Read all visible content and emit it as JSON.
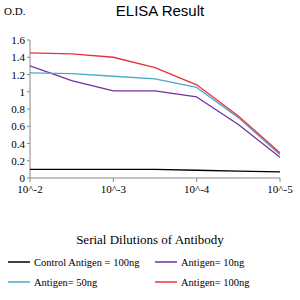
{
  "chart_data": {
    "type": "line",
    "title": "ELISA Result",
    "y_label": "O.D.",
    "x_label": "Serial Dilutions of Antibody",
    "log": "x",
    "x": [
      0.01,
      0.0031623,
      0.001,
      0.00031623,
      0.0001,
      3.1623e-05,
      1e-05
    ],
    "xlim": [
      0.01,
      1e-05
    ],
    "xticks": [
      {
        "value": 0.01,
        "label": "10^-2"
      },
      {
        "value": 0.001,
        "label": "10^-3"
      },
      {
        "value": 0.0001,
        "label": "10^-4"
      },
      {
        "value": 1e-05,
        "label": "10^-5"
      }
    ],
    "ylim": [
      0,
      1.6
    ],
    "yticks": [
      0,
      0.2,
      0.4,
      0.6,
      0.8,
      1,
      1.2,
      1.4,
      1.6
    ],
    "grid": false,
    "legend": "bottom",
    "series": [
      {
        "name": "Control Antigen = 100ng",
        "color": "#000000",
        "values": [
          0.1,
          0.1,
          0.1,
          0.1,
          0.09,
          0.08,
          0.07
        ]
      },
      {
        "name": "Antigen= 10ng",
        "color": "#7030a0",
        "values": [
          1.3,
          1.13,
          1.01,
          1.01,
          0.94,
          0.62,
          0.24
        ]
      },
      {
        "name": "Antigen= 50ng",
        "color": "#4aa9c9",
        "values": [
          1.22,
          1.21,
          1.18,
          1.15,
          1.05,
          0.7,
          0.27
        ]
      },
      {
        "name": "Antigen= 100ng",
        "color": "#e8323a",
        "values": [
          1.45,
          1.44,
          1.4,
          1.28,
          1.08,
          0.72,
          0.29
        ]
      }
    ]
  }
}
